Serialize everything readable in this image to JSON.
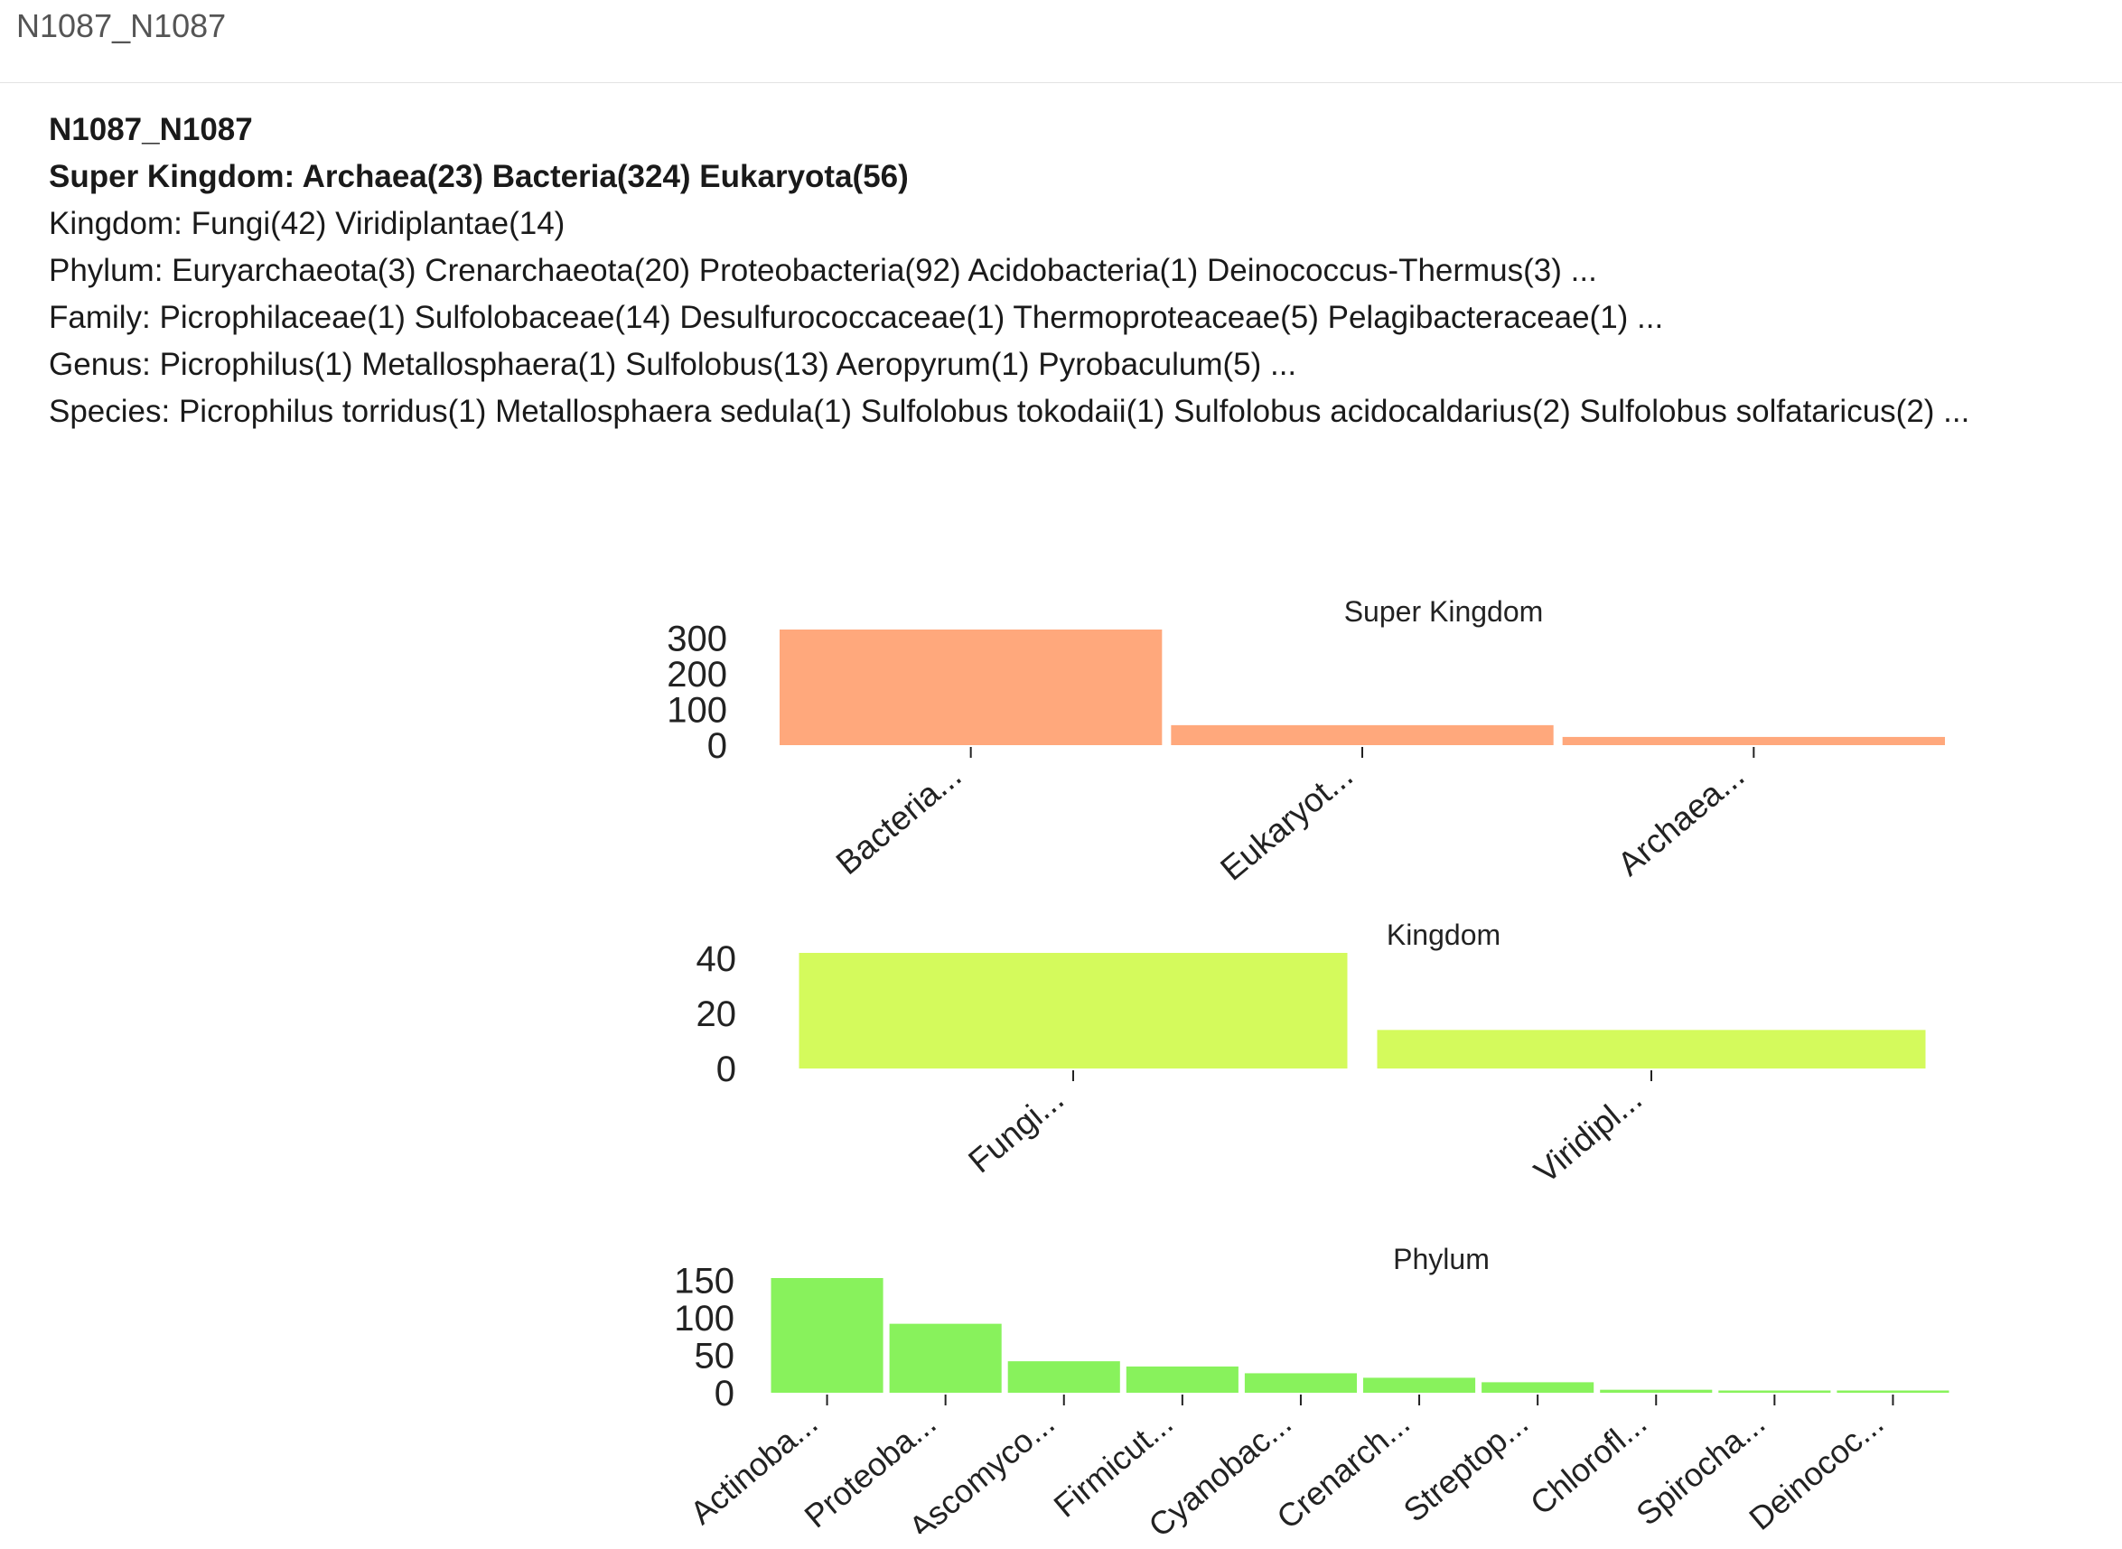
{
  "header": {
    "title": "N1087_N1087"
  },
  "summary": {
    "title": "N1087_N1087",
    "super_kingdom": "Super Kingdom: Archaea(23) Bacteria(324) Eukaryota(56)",
    "kingdom": "Kingdom: Fungi(42) Viridiplantae(14)",
    "phylum": "Phylum: Euryarchaeota(3) Crenarchaeota(20) Proteobacteria(92) Acidobacteria(1) Deinococcus-Thermus(3) ...",
    "family": "Family: Picrophilaceae(1) Sulfolobaceae(14) Desulfurococcaceae(1) Thermoproteaceae(5) Pelagibacteraceae(1) ...",
    "genus": "Genus: Picrophilus(1) Metallosphaera(1) Sulfolobus(13) Aeropyrum(1) Pyrobaculum(5) ...",
    "species": "Species: Picrophilus torridus(1) Metallosphaera sedula(1) Sulfolobus tokodaii(1) Sulfolobus acidocaldarius(2) Sulfolobus solfataricus(2) ..."
  },
  "chart_data": [
    {
      "type": "bar",
      "title": "Super Kingdom",
      "categories": [
        "Bacteria...",
        "Eukaryot...",
        "Archaea..."
      ],
      "values": [
        324,
        56,
        23
      ],
      "yticks": [
        0,
        100,
        200,
        300
      ],
      "ylim": [
        0,
        324
      ],
      "color": "#ffa87c",
      "grid": false
    },
    {
      "type": "bar",
      "title": "Kingdom",
      "categories": [
        "Fungi...",
        "Viridipl..."
      ],
      "values": [
        42,
        14
      ],
      "yticks": [
        0,
        20,
        40
      ],
      "ylim": [
        0,
        42
      ],
      "color": "#d4fa5c",
      "grid": false
    },
    {
      "type": "bar",
      "title": "Phylum",
      "categories": [
        "Actinoba...",
        "Proteoba...",
        "Ascomyco...",
        "Firmicut...",
        "Cyanobac...",
        "Crenarch...",
        "Streptop...",
        "Chlorofl...",
        "Spirocha...",
        "Deinococ..."
      ],
      "values": [
        153,
        92,
        42,
        35,
        26,
        20,
        14,
        4,
        3,
        3
      ],
      "yticks": [
        0,
        50,
        100,
        150
      ],
      "ylim": [
        0,
        153
      ],
      "color": "#88f25c",
      "grid": false
    }
  ]
}
